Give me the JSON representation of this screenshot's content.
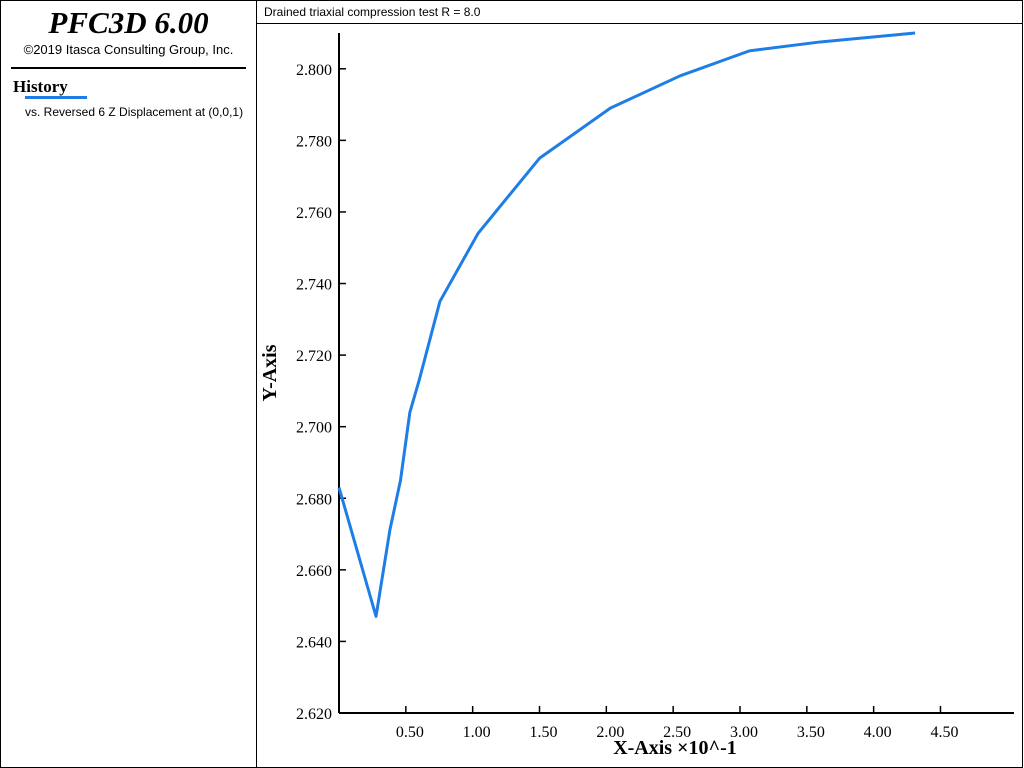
{
  "header": {
    "title": "PFC3D 6.00",
    "copyright": "©2019 Itasca Consulting Group, Inc."
  },
  "legend": {
    "heading": "History"
  },
  "chart_data": {
    "type": "line",
    "title": "Drained triaxial compression test R = 8.0",
    "x_label": "X-Axis ×10^-1",
    "y_label": "Y-Axis",
    "x": [
      0,
      0.277,
      0.38,
      0.46,
      0.53,
      0.6,
      0.755,
      1.04,
      1.5,
      2.03,
      2.55,
      3.07,
      3.6,
      4.31
    ],
    "series": [
      {
        "name": "vs. Reversed 6 Z Displacement at (0,0,1)",
        "color": "#1e7ee6",
        "values": [
          2.683,
          2.647,
          2.671,
          2.685,
          2.704,
          2.713,
          2.735,
          2.754,
          2.775,
          2.789,
          2.798,
          2.805,
          2.8075,
          2.81
        ]
      }
    ],
    "xlim": [
      0,
      5.05
    ],
    "ylim": [
      2.62,
      2.81
    ],
    "xticks": [
      {
        "value": 0.5,
        "label": "0.50"
      },
      {
        "value": 1.0,
        "label": "1.00"
      },
      {
        "value": 1.5,
        "label": "1.50"
      },
      {
        "value": 2.0,
        "label": "2.00"
      },
      {
        "value": 2.5,
        "label": "2.50"
      },
      {
        "value": 3.0,
        "label": "3.00"
      },
      {
        "value": 3.5,
        "label": "3.50"
      },
      {
        "value": 4.0,
        "label": "4.00"
      },
      {
        "value": 4.5,
        "label": "4.50"
      }
    ],
    "yticks": [
      {
        "value": 2.62,
        "label": "2.620"
      },
      {
        "value": 2.64,
        "label": "2.640"
      },
      {
        "value": 2.66,
        "label": "2.660"
      },
      {
        "value": 2.68,
        "label": "2.680"
      },
      {
        "value": 2.7,
        "label": "2.700"
      },
      {
        "value": 2.72,
        "label": "2.720"
      },
      {
        "value": 2.74,
        "label": "2.740"
      },
      {
        "value": 2.76,
        "label": "2.760"
      },
      {
        "value": 2.78,
        "label": "2.780"
      },
      {
        "value": 2.8,
        "label": "2.800"
      }
    ]
  }
}
